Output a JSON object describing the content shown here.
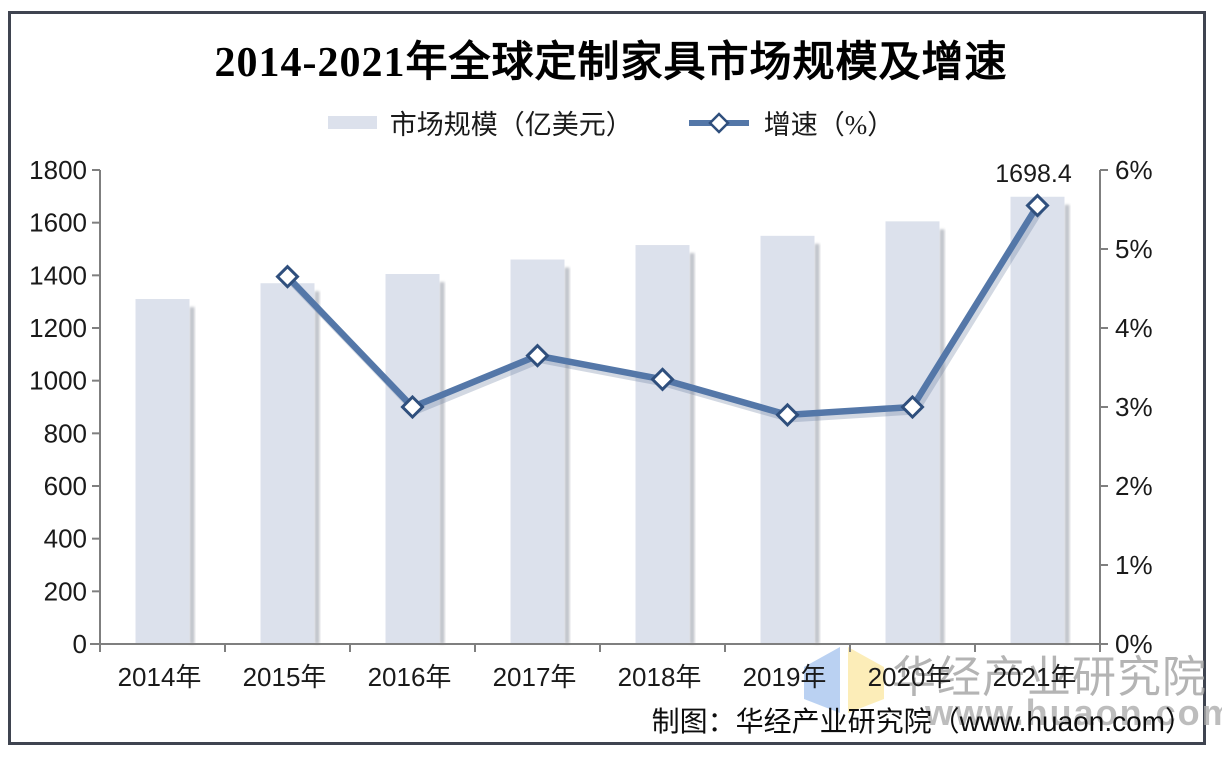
{
  "chart_data": {
    "type": "bar+line",
    "title": "2014-2021年全球定制家具市场规模及增速",
    "categories": [
      "2014年",
      "2015年",
      "2016年",
      "2017年",
      "2018年",
      "2019年",
      "2020年",
      "2021年"
    ],
    "series": [
      {
        "name": "市场规模（亿美元）",
        "type": "bar",
        "axis": "left",
        "values": [
          1310,
          1370,
          1405,
          1460,
          1515,
          1550,
          1605,
          1698.4
        ]
      },
      {
        "name": "增速（%）",
        "type": "line",
        "marker": "diamond",
        "axis": "right",
        "values": [
          null,
          4.65,
          3.0,
          3.65,
          3.35,
          2.9,
          3.0,
          5.55
        ]
      }
    ],
    "left_axis": {
      "min": 0,
      "max": 1800,
      "step": 200,
      "ticks": [
        "0",
        "200",
        "400",
        "600",
        "800",
        "1000",
        "1200",
        "1400",
        "1600",
        "1800"
      ]
    },
    "right_axis": {
      "min": 0,
      "max": 6,
      "step": 1,
      "ticks": [
        "0%",
        "1%",
        "2%",
        "3%",
        "4%",
        "5%",
        "6%"
      ]
    },
    "annotations": [
      {
        "text": "1698.4",
        "category": "2021年",
        "series": "市场规模（亿美元）"
      }
    ],
    "legend_position": "top",
    "grid": false
  },
  "footer": {
    "credit": "制图：华经产业研究院（www.huaon.com）"
  },
  "watermark": {
    "brand_text": "华经产业研究院",
    "url_text": "www.huaon.com"
  },
  "colors": {
    "bar_fill": "#dce1ec",
    "bar_shadow": "#767d8c",
    "line": "#5477a8",
    "line_shadow": "#5c7397",
    "marker_stroke": "#2f4f7d",
    "marker_fill": "#ffffff",
    "axis": "#7f7f7f",
    "text": "#1a1a1a",
    "frame_border": "#3f4450",
    "watermark_gray": "#a8a8a8",
    "logo_blue": "#a9c6ef",
    "logo_yellow": "#fbe9a6"
  }
}
